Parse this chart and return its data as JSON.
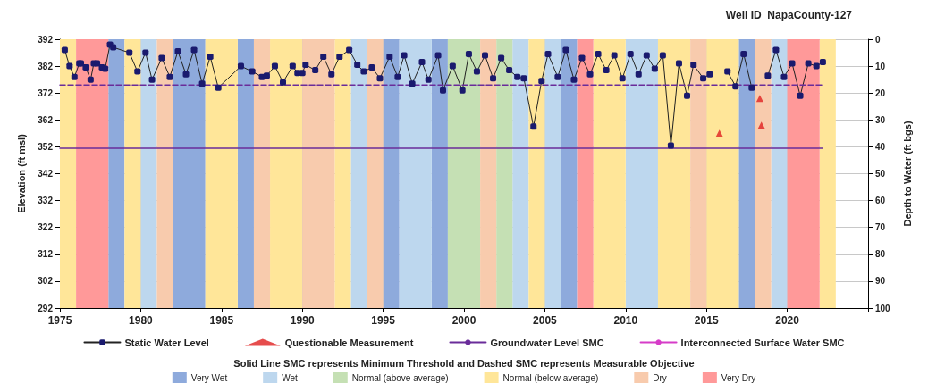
{
  "chart_data": {
    "type": "line",
    "title": "Well ID  NapaCounty-127",
    "xlabel": null,
    "ylabel": "Elevation (ft msl)",
    "y2label": "Depth to Water (ft bgs)",
    "annotations": [
      "Solid Line SMC represents Minimum Threshold and Dashed SMC represents Measurable Objective"
    ],
    "xlim": [
      1975,
      2025
    ],
    "xticks": [
      1975,
      1980,
      1985,
      1990,
      1995,
      2000,
      2005,
      2010,
      2015,
      2020,
      {
        "value": 2025,
        "label": null
      }
    ],
    "ylim": [
      292,
      392
    ],
    "yticks": [
      292,
      302,
      312,
      322,
      332,
      342,
      352,
      362,
      372,
      382,
      392
    ],
    "y2lim": [
      100,
      0
    ],
    "y2ticks": [
      0,
      10,
      20,
      30,
      40,
      50,
      60,
      70,
      80,
      90,
      100
    ],
    "grid": true,
    "legend": "bottom",
    "series": [
      {
        "name": "Static Water Level",
        "color": "#1a1a6e",
        "marker": "square",
        "line_style": "solid",
        "x": [
          1975.3,
          1975.6,
          1975.9,
          1976.2,
          1976.3,
          1976.6,
          1976.9,
          1977.1,
          1977.3,
          1977.6,
          1977.8,
          1978.1,
          1978.3,
          1979.3,
          1979.8,
          1980.3,
          1980.7,
          1981.3,
          1981.8,
          1982.3,
          1982.8,
          1983.3,
          1983.8,
          1984.3,
          1984.8,
          1986.2,
          1986.9,
          1987.5,
          1987.8,
          1988.3,
          1988.8,
          1989.4,
          1989.7,
          1990.0,
          1990.2,
          1990.8,
          1991.3,
          1991.8,
          1992.3,
          1992.9,
          1993.4,
          1993.8,
          1994.3,
          1994.8,
          1995.4,
          1995.9,
          1996.3,
          1996.8,
          1997.4,
          1997.8,
          1998.4,
          1998.7,
          1999.3,
          1999.9,
          2000.3,
          2000.8,
          2001.3,
          2001.8,
          2002.3,
          2002.8,
          2003.3,
          2003.7,
          2004.3,
          2004.8,
          2005.2,
          2005.8,
          2006.3,
          2006.8,
          2007.3,
          2007.8,
          2008.3,
          2008.8,
          2009.3,
          2009.8,
          2010.3,
          2010.8,
          2011.3,
          2011.8,
          2012.3,
          2012.8,
          2013.3,
          2013.8,
          2014.2,
          2014.8,
          2015.2,
          2015.7,
          2016.3,
          2016.8,
          2017.3,
          2017.8,
          2018.3,
          2018.8,
          2019.3,
          2019.8,
          2020.3,
          2020.8,
          2021.3,
          2021.8,
          2022.2
        ],
        "values": [
          388,
          382,
          378,
          383,
          383,
          381.5,
          377,
          383,
          383,
          381.5,
          381,
          390,
          389,
          387,
          380,
          387,
          377,
          385,
          378,
          387.5,
          379,
          388,
          375.5,
          385.5,
          374,
          382,
          380,
          378,
          378.5,
          382,
          376,
          382,
          379.5,
          379.5,
          382.5,
          380.5,
          385.5,
          379,
          385.5,
          388,
          382.5,
          380,
          381.5,
          377.5,
          385.5,
          378,
          386,
          375.5,
          383.5,
          377,
          386,
          373,
          382,
          373,
          386.5,
          380,
          386,
          377.5,
          385,
          380.5,
          378,
          377.5,
          359.5,
          376.5,
          386.5,
          378,
          388,
          377,
          385,
          379,
          386.5,
          380.5,
          386,
          377.5,
          386.5,
          379,
          386,
          381,
          386,
          352.5,
          383,
          371,
          382.5,
          377.5,
          379,
          null,
          380,
          374.5,
          386.5,
          374,
          null,
          378.5,
          388,
          378,
          383,
          371,
          383,
          382,
          383.5
        ]
      },
      {
        "name": "Questionable Measurement",
        "type": "scatter",
        "color": "#e02020",
        "marker": "triangle",
        "x": [
          2015.8,
          2018.3,
          2018.4
        ],
        "values": [
          357,
          370,
          360
        ]
      },
      {
        "name": "Groundwater Level SMC",
        "color": "#6a2c9a",
        "marker": "none",
        "line_style": "solid",
        "x": [
          1975,
          2022.2
        ],
        "values": [
          351.5,
          351.5
        ]
      },
      {
        "color": "#6a2c9a",
        "marker": "none",
        "line_style": "dashed",
        "x": [
          1975,
          2022.2
        ],
        "values": [
          375,
          375
        ]
      },
      {
        "name": "Interconnected Surface Water SMC",
        "color": "#d63cc8",
        "marker": "none",
        "line_style": "solid"
      }
    ],
    "bands": [
      {
        "axis": "x",
        "from": 1978,
        "to": 1979,
        "label": "Very Wet",
        "color": "#8eaadc"
      },
      {
        "axis": "x",
        "from": 1980,
        "to": 1981,
        "label": "Wet",
        "color": "#bdd7ee"
      },
      {
        "axis": "x",
        "from": 1999,
        "to": 2001,
        "label": "Normal (above average)",
        "color": "#c5e0b4"
      },
      {
        "axis": "x",
        "from": 1975,
        "to": 1976,
        "label": "Normal (below average)",
        "color": "#ffe699"
      },
      {
        "axis": "x",
        "from": 1981,
        "to": 1982,
        "label": "Dry",
        "color": "#f8cbad"
      },
      {
        "axis": "x",
        "from": 1976,
        "to": 1978,
        "label": "Very Dry",
        "color": "#ff9999"
      },
      {
        "axis": "x",
        "from": 1982,
        "to": 1984,
        "color": "#8eaadc"
      },
      {
        "axis": "x",
        "from": 1986,
        "to": 1987,
        "color": "#8eaadc"
      },
      {
        "axis": "x",
        "from": 1995,
        "to": 1996,
        "color": "#8eaadc"
      },
      {
        "axis": "x",
        "from": 1998,
        "to": 1999,
        "color": "#8eaadc"
      },
      {
        "axis": "x",
        "from": 2006,
        "to": 2007,
        "color": "#8eaadc"
      },
      {
        "axis": "x",
        "from": 2017,
        "to": 2018,
        "color": "#8eaadc"
      },
      {
        "axis": "x",
        "from": 1993,
        "to": 1994,
        "color": "#bdd7ee"
      },
      {
        "axis": "x",
        "from": 1996,
        "to": 1998,
        "color": "#bdd7ee"
      },
      {
        "axis": "x",
        "from": 2003,
        "to": 2004,
        "color": "#bdd7ee"
      },
      {
        "axis": "x",
        "from": 2005,
        "to": 2006,
        "color": "#bdd7ee"
      },
      {
        "axis": "x",
        "from": 2010,
        "to": 2012,
        "color": "#bdd7ee"
      },
      {
        "axis": "x",
        "from": 2019,
        "to": 2020,
        "color": "#bdd7ee"
      },
      {
        "axis": "x",
        "from": 2002,
        "to": 2003,
        "color": "#c5e0b4"
      },
      {
        "axis": "x",
        "from": 1979,
        "to": 1980,
        "color": "#ffe699"
      },
      {
        "axis": "x",
        "from": 1984,
        "to": 1986,
        "color": "#ffe699"
      },
      {
        "axis": "x",
        "from": 1988,
        "to": 1990,
        "color": "#ffe699"
      },
      {
        "axis": "x",
        "from": 1992,
        "to": 1993,
        "color": "#ffe699"
      },
      {
        "axis": "x",
        "from": 2004,
        "to": 2005,
        "color": "#ffe699"
      },
      {
        "axis": "x",
        "from": 2008,
        "to": 2010,
        "color": "#ffe699"
      },
      {
        "axis": "x",
        "from": 2012,
        "to": 2014,
        "color": "#ffe699"
      },
      {
        "axis": "x",
        "from": 2015,
        "to": 2017,
        "color": "#ffe699"
      },
      {
        "axis": "x",
        "from": 2022,
        "to": 2023,
        "color": "#ffe699"
      },
      {
        "axis": "x",
        "from": 1987,
        "to": 1988,
        "color": "#f8cbad"
      },
      {
        "axis": "x",
        "from": 1990,
        "to": 1992,
        "color": "#f8cbad"
      },
      {
        "axis": "x",
        "from": 1994,
        "to": 1995,
        "color": "#f8cbad"
      },
      {
        "axis": "x",
        "from": 2001,
        "to": 2002,
        "color": "#f8cbad"
      },
      {
        "axis": "x",
        "from": 2014,
        "to": 2015,
        "color": "#f8cbad"
      },
      {
        "axis": "x",
        "from": 2018,
        "to": 2019,
        "color": "#f8cbad"
      },
      {
        "axis": "x",
        "from": 2007,
        "to": 2008,
        "color": "#ff9999"
      },
      {
        "axis": "x",
        "from": 2020,
        "to": 2022,
        "color": "#ff9999"
      }
    ]
  }
}
